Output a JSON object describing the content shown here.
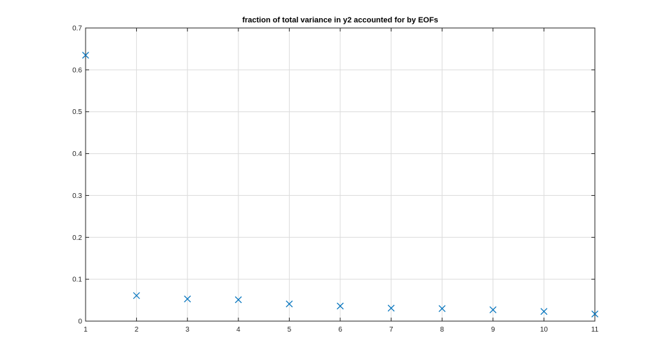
{
  "chart_data": {
    "type": "scatter",
    "title": "fraction of total variance in y2 accounted for by EOFs",
    "xlabel": "",
    "ylabel": "",
    "xlim": [
      1,
      11
    ],
    "ylim": [
      0,
      0.7
    ],
    "x_ticks": [
      "1",
      "2",
      "3",
      "4",
      "5",
      "6",
      "7",
      "8",
      "9",
      "10",
      "11"
    ],
    "y_ticks": [
      "0",
      "0.1",
      "0.2",
      "0.3",
      "0.4",
      "0.5",
      "0.6",
      "0.7"
    ],
    "grid": true,
    "marker": "x",
    "series": [
      {
        "x": [
          1,
          2,
          3,
          4,
          5,
          6,
          7,
          8,
          9,
          10,
          11
        ],
        "values": [
          0.635,
          0.061,
          0.053,
          0.051,
          0.041,
          0.036,
          0.031,
          0.03,
          0.027,
          0.023,
          0.017
        ],
        "color": "#0072BD"
      }
    ]
  }
}
